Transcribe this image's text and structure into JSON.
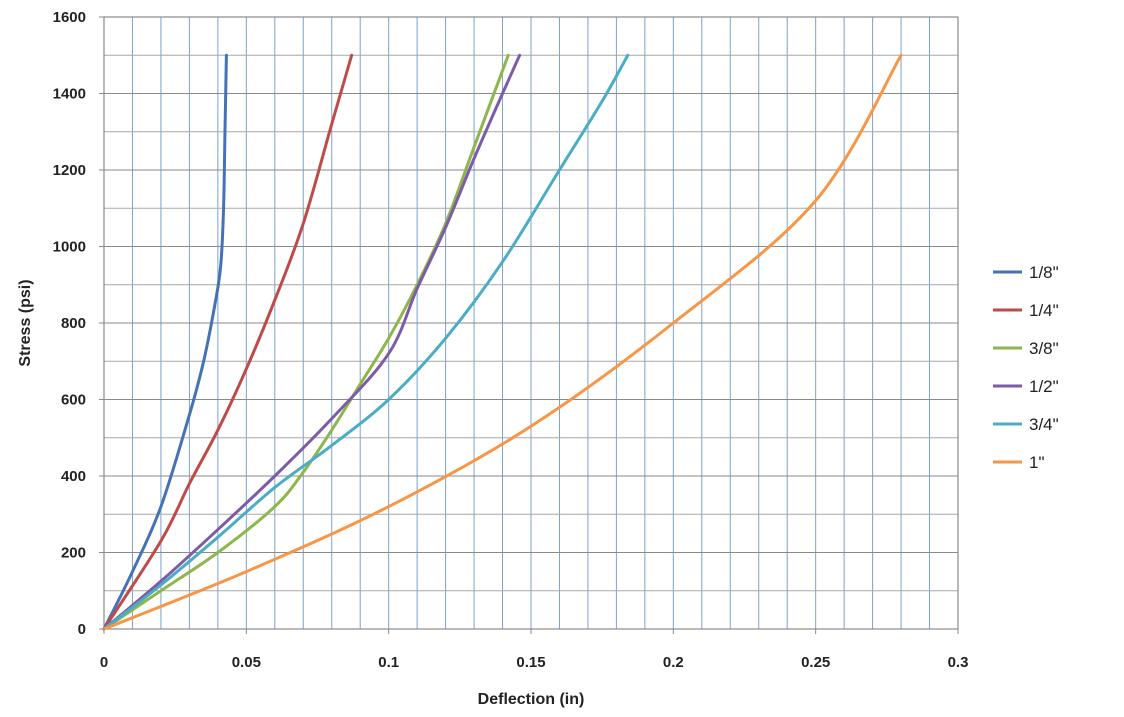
{
  "chart_data": {
    "type": "line",
    "title": "",
    "xlabel": "Deflection (in)",
    "ylabel": "Stress (psi)",
    "xlim": [
      0,
      0.3
    ],
    "ylim": [
      0,
      1600
    ],
    "x_ticks": [
      0,
      0.05,
      0.1,
      0.15,
      0.2,
      0.25,
      0.3
    ],
    "x_tick_labels": [
      "0",
      "0.05",
      "0.1",
      "0.15",
      "0.2",
      "0.25",
      "0.3"
    ],
    "y_ticks": [
      0,
      200,
      400,
      600,
      800,
      1000,
      1200,
      1400,
      1600
    ],
    "y_tick_labels": [
      "0",
      "200",
      "400",
      "600",
      "800",
      "1000",
      "1200",
      "1400",
      "1600"
    ],
    "x_minor_step": 0.01,
    "y_minor_step": 100,
    "grid": true,
    "legend_position": "right",
    "series": [
      {
        "name": "1/8\"",
        "color": "#4472B4",
        "points": [
          [
            0,
            0
          ],
          [
            0.01,
            150
          ],
          [
            0.02,
            320
          ],
          [
            0.03,
            560
          ],
          [
            0.035,
            700
          ],
          [
            0.039,
            850
          ],
          [
            0.041,
            950
          ],
          [
            0.042,
            1100
          ],
          [
            0.0425,
            1300
          ],
          [
            0.043,
            1500
          ]
        ]
      },
      {
        "name": "1/4\"",
        "color": "#BE4B48",
        "points": [
          [
            0,
            0
          ],
          [
            0.02,
            230
          ],
          [
            0.03,
            380
          ],
          [
            0.04,
            520
          ],
          [
            0.05,
            680
          ],
          [
            0.06,
            860
          ],
          [
            0.07,
            1060
          ],
          [
            0.08,
            1320
          ],
          [
            0.087,
            1500
          ]
        ]
      },
      {
        "name": "3/8\"",
        "color": "#8DB64B",
        "points": [
          [
            0,
            0
          ],
          [
            0.02,
            100
          ],
          [
            0.04,
            200
          ],
          [
            0.06,
            320
          ],
          [
            0.07,
            410
          ],
          [
            0.08,
            520
          ],
          [
            0.09,
            640
          ],
          [
            0.1,
            760
          ],
          [
            0.11,
            900
          ],
          [
            0.12,
            1060
          ],
          [
            0.13,
            1260
          ],
          [
            0.142,
            1500
          ]
        ]
      },
      {
        "name": "1/2\"",
        "color": "#7D5BA6",
        "points": [
          [
            0,
            0
          ],
          [
            0.02,
            125
          ],
          [
            0.04,
            260
          ],
          [
            0.06,
            400
          ],
          [
            0.08,
            550
          ],
          [
            0.1,
            720
          ],
          [
            0.11,
            890
          ],
          [
            0.12,
            1050
          ],
          [
            0.13,
            1230
          ],
          [
            0.14,
            1400
          ],
          [
            0.146,
            1500
          ]
        ]
      },
      {
        "name": "3/4\"",
        "color": "#4BACC6",
        "points": [
          [
            0,
            0
          ],
          [
            0.02,
            115
          ],
          [
            0.04,
            240
          ],
          [
            0.06,
            370
          ],
          [
            0.08,
            480
          ],
          [
            0.1,
            600
          ],
          [
            0.12,
            760
          ],
          [
            0.14,
            960
          ],
          [
            0.16,
            1200
          ],
          [
            0.175,
            1380
          ],
          [
            0.184,
            1500
          ]
        ]
      },
      {
        "name": "1\"",
        "color": "#F79646",
        "points": [
          [
            0,
            0
          ],
          [
            0.05,
            150
          ],
          [
            0.1,
            320
          ],
          [
            0.15,
            530
          ],
          [
            0.2,
            800
          ],
          [
            0.25,
            1120
          ],
          [
            0.28,
            1500
          ]
        ]
      }
    ]
  }
}
